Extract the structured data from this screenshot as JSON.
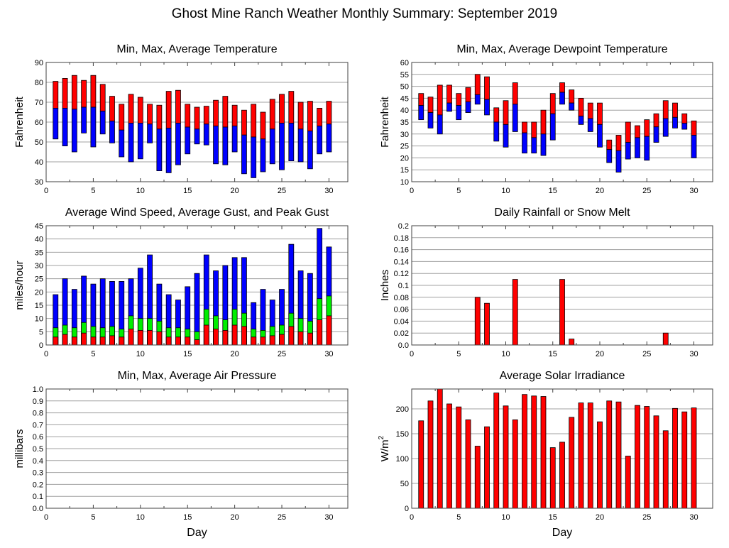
{
  "title": "Ghost Mine Ranch Weather Monthly Summary: September 2019",
  "colors": {
    "red": "#ff0000",
    "blue": "#0000ff",
    "green": "#00ee00",
    "grid": "#a0a0a0",
    "frame": "#404040"
  },
  "chart_data": [
    {
      "id": "temperature",
      "type": "bar",
      "stacked_range": true,
      "title": "Min, Max, Average Temperature",
      "xlabel": "",
      "ylabel": "Fahrenheit",
      "xlim": [
        0,
        32
      ],
      "ylim": [
        30,
        90
      ],
      "xticks": [
        0,
        5,
        10,
        15,
        20,
        25,
        30
      ],
      "yticks": [
        30,
        40,
        50,
        60,
        70,
        80,
        90
      ],
      "ytick_labels": [
        "30",
        "40",
        "50",
        "60",
        "70",
        "80",
        "90"
      ],
      "grid": true,
      "x": [
        1,
        2,
        3,
        4,
        5,
        6,
        7,
        8,
        9,
        10,
        11,
        12,
        13,
        14,
        15,
        16,
        17,
        18,
        19,
        20,
        21,
        22,
        23,
        24,
        25,
        26,
        27,
        28,
        29,
        30
      ],
      "series": [
        {
          "name": "Max",
          "color": "#ff0000",
          "values": [
            80.5,
            82,
            83.5,
            81,
            83.5,
            79,
            73,
            69,
            74,
            72.5,
            69,
            68.5,
            75.5,
            76,
            69,
            67.5,
            68,
            71,
            73,
            68.5,
            66,
            69,
            65,
            71.5,
            74,
            75.5,
            70,
            70.5,
            67,
            70.5
          ]
        },
        {
          "name": "Average",
          "values": [
            67,
            67,
            66.5,
            67.5,
            67.5,
            65.5,
            60.5,
            56,
            59.5,
            59.5,
            59,
            56.5,
            57,
            59.5,
            57.5,
            56.5,
            59,
            58,
            57.5,
            58,
            53.5,
            52.5,
            51.5,
            56.5,
            59.5,
            59.5,
            56.5,
            55.5,
            58,
            59
          ]
        },
        {
          "name": "Min",
          "color": "#0000ff",
          "values": [
            51.5,
            48,
            45,
            54.5,
            47.5,
            54,
            49.5,
            42.5,
            40,
            41.5,
            49.5,
            35.5,
            34.5,
            38.5,
            44,
            49,
            48.5,
            39,
            38.5,
            45,
            34,
            32,
            35,
            39,
            36,
            40.5,
            40,
            36.5,
            44,
            45
          ]
        }
      ]
    },
    {
      "id": "dewpoint",
      "type": "bar",
      "stacked_range": true,
      "title": "Min, Max, Average Dewpoint Temperature",
      "xlabel": "",
      "ylabel": "Fahrenheit",
      "xlim": [
        0,
        32
      ],
      "ylim": [
        10,
        60
      ],
      "xticks": [
        0,
        5,
        10,
        15,
        20,
        25,
        30
      ],
      "yticks": [
        10,
        15,
        20,
        25,
        30,
        35,
        40,
        45,
        50,
        55,
        60
      ],
      "ytick_labels": [
        "10",
        "15",
        "20",
        "25",
        "30",
        "35",
        "40",
        "45",
        "50",
        "55",
        "60"
      ],
      "grid": true,
      "x": [
        1,
        2,
        3,
        4,
        5,
        6,
        7,
        8,
        9,
        10,
        11,
        12,
        13,
        14,
        15,
        16,
        17,
        18,
        19,
        20,
        21,
        22,
        23,
        24,
        25,
        26,
        27,
        28,
        29,
        30
      ],
      "series": [
        {
          "name": "Max",
          "color": "#ff0000",
          "values": [
            47,
            45.5,
            50.5,
            50.5,
            47,
            49.5,
            55,
            54,
            41,
            44,
            51.5,
            35,
            35,
            40,
            47,
            51.5,
            48.5,
            45,
            43,
            43,
            27.5,
            29.5,
            35,
            33.5,
            36,
            38.5,
            44,
            43,
            38.5,
            35.5
          ]
        },
        {
          "name": "Average",
          "values": [
            42,
            39,
            38,
            43,
            42,
            43.5,
            46.5,
            44.5,
            35,
            34,
            42.5,
            30.5,
            28.5,
            30,
            38.5,
            47.5,
            43,
            37.5,
            36.5,
            34,
            23.5,
            23,
            26.5,
            28.5,
            29,
            33,
            36.5,
            37,
            34.5,
            29.5
          ]
        },
        {
          "name": "Min",
          "color": "#0000ff",
          "values": [
            36,
            32.5,
            30,
            39.5,
            36,
            39,
            42.5,
            38,
            27,
            24.5,
            31,
            22,
            22,
            21,
            27.5,
            42.5,
            40,
            34,
            31,
            24.5,
            18,
            14,
            19.5,
            20,
            19,
            26.5,
            29,
            32.5,
            32,
            20
          ]
        }
      ]
    },
    {
      "id": "wind",
      "type": "bar",
      "stacked": true,
      "title": "Average Wind Speed, Average Gust, and Peak Gust",
      "xlabel": "",
      "ylabel": "miles/hour",
      "xlim": [
        0,
        32
      ],
      "ylim": [
        0,
        45
      ],
      "xticks": [
        0,
        5,
        10,
        15,
        20,
        25,
        30
      ],
      "yticks": [
        0,
        5,
        10,
        15,
        20,
        25,
        30,
        35,
        40,
        45
      ],
      "ytick_labels": [
        "0",
        "5",
        "10",
        "15",
        "20",
        "25",
        "30",
        "35",
        "40",
        "45"
      ],
      "grid": true,
      "x": [
        1,
        2,
        3,
        4,
        5,
        6,
        7,
        8,
        9,
        10,
        11,
        12,
        13,
        14,
        15,
        16,
        17,
        18,
        19,
        20,
        21,
        22,
        23,
        24,
        25,
        26,
        27,
        28,
        29,
        30
      ],
      "series": [
        {
          "name": "Peak Gust",
          "color": "#0000ff",
          "values": [
            19,
            25,
            21,
            26,
            23,
            25,
            24,
            24,
            25,
            29,
            34,
            23,
            19,
            17,
            22,
            27,
            34,
            28,
            30,
            33,
            33,
            16,
            21,
            17,
            21,
            38,
            28,
            27,
            44,
            37
          ]
        },
        {
          "name": "Average Gust",
          "color": "#00ee00",
          "values": [
            6.5,
            7.5,
            6.5,
            8.5,
            7,
            6.5,
            7,
            6,
            11,
            10,
            10,
            9,
            6.5,
            6.5,
            6,
            5,
            13.5,
            11,
            9.5,
            13.5,
            12,
            6,
            5.5,
            7,
            7.5,
            12,
            10,
            9,
            17.5,
            18.5
          ]
        },
        {
          "name": "Average Wind Speed",
          "color": "#ff0000",
          "values": [
            3,
            4,
            3,
            4.5,
            3,
            3,
            3.5,
            3,
            6,
            5.5,
            5.5,
            5,
            3,
            3,
            3,
            2,
            7.5,
            6,
            5.5,
            7.5,
            7,
            3,
            3,
            3.5,
            4,
            7,
            5,
            4.5,
            9.5,
            11
          ]
        }
      ]
    },
    {
      "id": "rainfall",
      "type": "bar",
      "title": "Daily Rainfall or Snow Melt",
      "xlabel": "",
      "ylabel": "Inches",
      "xlim": [
        0,
        32
      ],
      "ylim": [
        0,
        0.2
      ],
      "xticks": [
        0,
        5,
        10,
        15,
        20,
        25,
        30
      ],
      "yticks": [
        0,
        0.02,
        0.04,
        0.06,
        0.08,
        0.1,
        0.12,
        0.14,
        0.16,
        0.18,
        0.2
      ],
      "ytick_labels": [
        "0.0",
        "0.02",
        "0.04",
        "0.06",
        "0.08",
        "0.1",
        "0.12",
        "0.14",
        "0.16",
        "0.18",
        "0.2"
      ],
      "grid": true,
      "x": [
        7,
        8,
        11,
        16,
        17,
        27
      ],
      "series": [
        {
          "name": "Rainfall",
          "color": "#ff0000",
          "values": [
            0.08,
            0.07,
            0.11,
            0.11,
            0.01,
            0.02
          ]
        }
      ]
    },
    {
      "id": "pressure",
      "type": "bar",
      "title": "Min, Max, Average Air Pressure",
      "xlabel": "Day",
      "ylabel": "millibars",
      "xlim": [
        0,
        32
      ],
      "ylim": [
        0,
        1
      ],
      "xticks": [
        0,
        5,
        10,
        15,
        20,
        25,
        30
      ],
      "yticks": [
        0,
        0.1,
        0.2,
        0.3,
        0.4,
        0.5,
        0.6,
        0.7,
        0.8,
        0.9,
        1.0
      ],
      "ytick_labels": [
        "0.0",
        "0.1",
        "0.2",
        "0.3",
        "0.4",
        "0.5",
        "0.6",
        "0.7",
        "0.8",
        "0.9",
        "1.0"
      ],
      "grid": true,
      "x": [],
      "series": []
    },
    {
      "id": "solar",
      "type": "bar",
      "title": "Average Solar Irradiance",
      "xlabel": "Day",
      "ylabel": "W/m",
      "ylabel_sup": "2",
      "xlim": [
        0,
        32
      ],
      "ylim": [
        0,
        240
      ],
      "xticks": [
        0,
        5,
        10,
        15,
        20,
        25,
        30
      ],
      "yticks": [
        0,
        50,
        100,
        150,
        200
      ],
      "ytick_labels": [
        "0",
        "50",
        "100",
        "150",
        "200"
      ],
      "grid": true,
      "x": [
        1,
        2,
        3,
        4,
        5,
        6,
        7,
        8,
        9,
        10,
        11,
        12,
        13,
        14,
        15,
        16,
        17,
        18,
        19,
        20,
        21,
        22,
        23,
        24,
        25,
        26,
        27,
        28,
        29,
        30
      ],
      "series": [
        {
          "name": "Solar Irradiance",
          "color": "#ff0000",
          "values": [
            176,
            216,
            240,
            210,
            204,
            178,
            125,
            164,
            232,
            206,
            178,
            229,
            226,
            225,
            122,
            133,
            183,
            212,
            212,
            174,
            216,
            214,
            105,
            207,
            205,
            186,
            156,
            201,
            194,
            202
          ]
        }
      ]
    }
  ]
}
